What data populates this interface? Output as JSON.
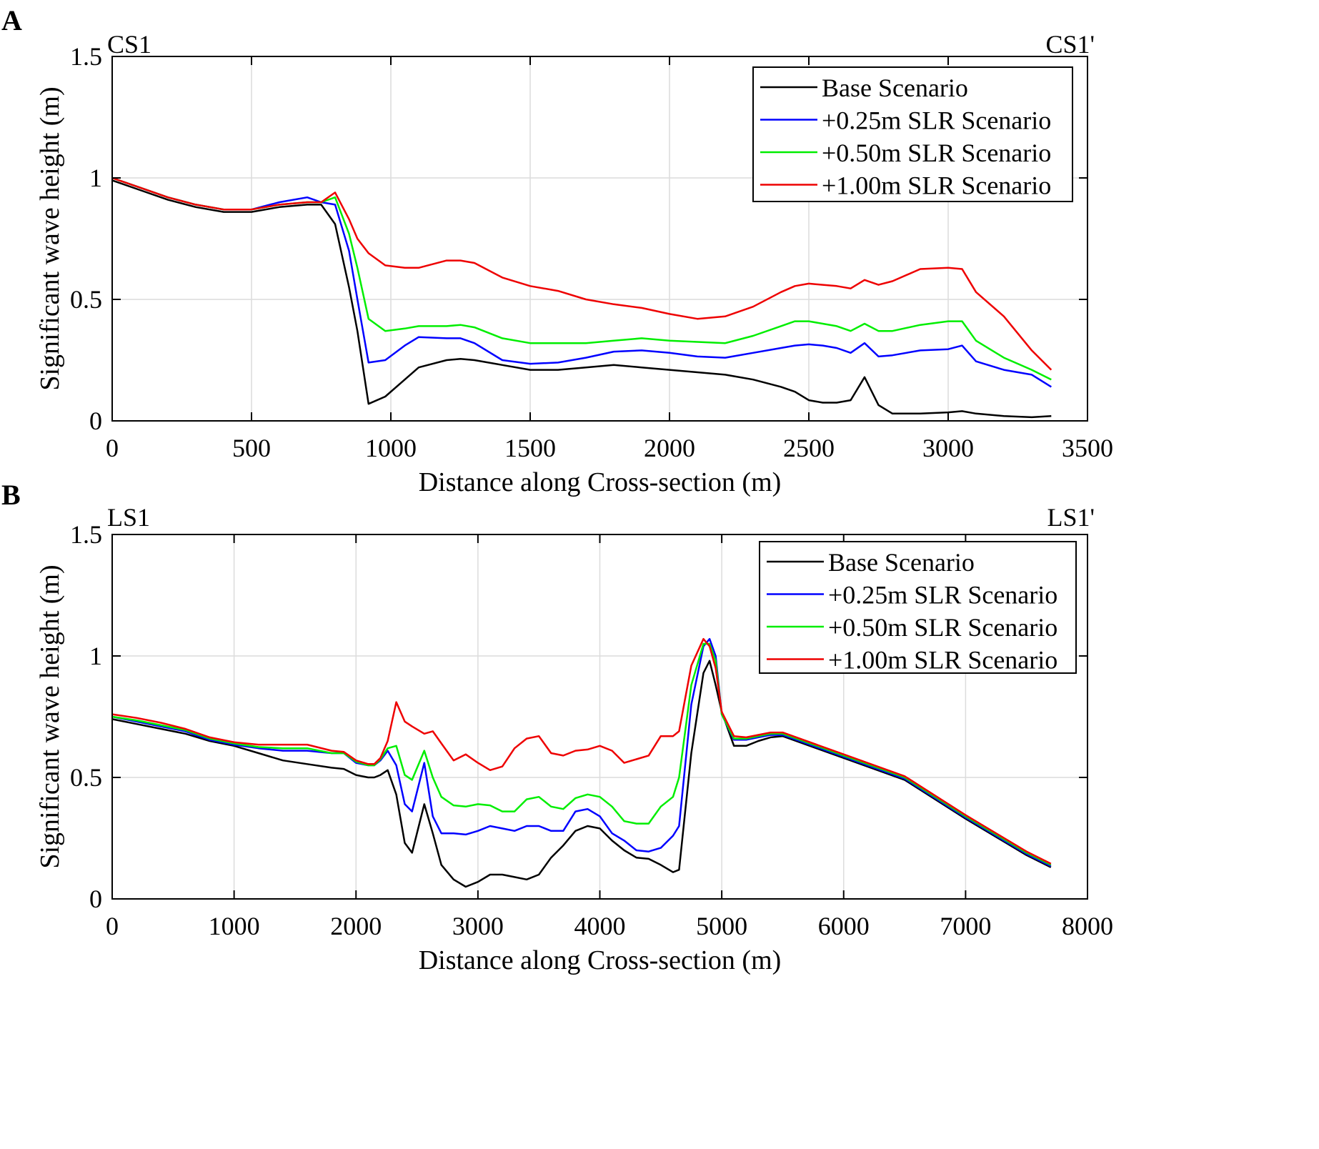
{
  "figure": {
    "panels": [
      {
        "letter": "A",
        "left_label": "CS1",
        "right_label": "CS1'"
      },
      {
        "letter": "B",
        "left_label": "LS1",
        "right_label": "LS1'"
      }
    ]
  },
  "chart_data": [
    {
      "type": "line",
      "panel": "A",
      "xlabel": "Distance along Cross-section (m)",
      "ylabel": "Significant wave height (m)",
      "xlim": [
        0,
        3500
      ],
      "ylim": [
        0,
        1.5
      ],
      "xticks": [
        0,
        500,
        1000,
        1500,
        2000,
        2500,
        3000,
        3500
      ],
      "yticks": [
        0,
        0.5,
        1,
        1.5
      ],
      "ytick_labels": [
        "0",
        "0.5",
        "1",
        "1.5"
      ],
      "grid": true,
      "legend_position": "top-right",
      "series": [
        {
          "name": "Base Scenario",
          "color": "#000000",
          "x": [
            0,
            100,
            200,
            300,
            400,
            500,
            600,
            700,
            750,
            800,
            850,
            880,
            920,
            980,
            1050,
            1100,
            1200,
            1250,
            1300,
            1400,
            1500,
            1600,
            1700,
            1800,
            1900,
            2000,
            2100,
            2200,
            2300,
            2400,
            2450,
            2500,
            2550,
            2600,
            2650,
            2700,
            2750,
            2800,
            2900,
            3000,
            3050,
            3100,
            3200,
            3300,
            3370
          ],
          "y": [
            0.99,
            0.95,
            0.91,
            0.88,
            0.86,
            0.86,
            0.88,
            0.89,
            0.89,
            0.81,
            0.55,
            0.37,
            0.07,
            0.1,
            0.17,
            0.22,
            0.25,
            0.255,
            0.25,
            0.23,
            0.21,
            0.21,
            0.22,
            0.23,
            0.22,
            0.21,
            0.2,
            0.19,
            0.17,
            0.14,
            0.12,
            0.085,
            0.075,
            0.075,
            0.085,
            0.18,
            0.065,
            0.03,
            0.03,
            0.035,
            0.04,
            0.03,
            0.02,
            0.015,
            0.02
          ]
        },
        {
          "name": "+0.25m SLR Scenario",
          "color": "#0000ff",
          "x": [
            0,
            100,
            200,
            300,
            400,
            500,
            600,
            700,
            750,
            800,
            850,
            880,
            920,
            980,
            1050,
            1100,
            1200,
            1250,
            1300,
            1400,
            1500,
            1600,
            1700,
            1800,
            1900,
            2000,
            2100,
            2200,
            2300,
            2400,
            2450,
            2500,
            2550,
            2600,
            2650,
            2700,
            2750,
            2800,
            2900,
            3000,
            3050,
            3100,
            3200,
            3300,
            3370
          ],
          "y": [
            1.0,
            0.96,
            0.92,
            0.89,
            0.87,
            0.87,
            0.9,
            0.92,
            0.9,
            0.89,
            0.7,
            0.5,
            0.24,
            0.25,
            0.31,
            0.345,
            0.34,
            0.34,
            0.32,
            0.25,
            0.235,
            0.24,
            0.26,
            0.285,
            0.29,
            0.28,
            0.265,
            0.26,
            0.28,
            0.3,
            0.31,
            0.315,
            0.31,
            0.3,
            0.28,
            0.32,
            0.265,
            0.27,
            0.29,
            0.295,
            0.31,
            0.245,
            0.21,
            0.19,
            0.14
          ]
        },
        {
          "name": "+0.50m SLR Scenario",
          "color": "#00ee00",
          "x": [
            0,
            100,
            200,
            300,
            400,
            500,
            600,
            700,
            750,
            800,
            850,
            880,
            920,
            980,
            1050,
            1100,
            1200,
            1250,
            1300,
            1400,
            1500,
            1600,
            1700,
            1800,
            1900,
            2000,
            2100,
            2200,
            2300,
            2400,
            2450,
            2500,
            2550,
            2600,
            2650,
            2700,
            2750,
            2800,
            2900,
            3000,
            3050,
            3100,
            3200,
            3300,
            3370
          ],
          "y": [
            1.0,
            0.96,
            0.92,
            0.89,
            0.87,
            0.87,
            0.89,
            0.9,
            0.9,
            0.92,
            0.77,
            0.63,
            0.42,
            0.37,
            0.38,
            0.39,
            0.39,
            0.395,
            0.385,
            0.34,
            0.32,
            0.32,
            0.32,
            0.33,
            0.34,
            0.33,
            0.325,
            0.32,
            0.35,
            0.39,
            0.41,
            0.41,
            0.4,
            0.39,
            0.37,
            0.4,
            0.37,
            0.37,
            0.395,
            0.41,
            0.41,
            0.33,
            0.26,
            0.21,
            0.17
          ]
        },
        {
          "name": "+1.00m SLR Scenario",
          "color": "#ee0000",
          "x": [
            0,
            100,
            200,
            300,
            400,
            500,
            600,
            700,
            750,
            800,
            850,
            880,
            920,
            980,
            1050,
            1100,
            1200,
            1250,
            1300,
            1400,
            1500,
            1600,
            1700,
            1800,
            1900,
            2000,
            2100,
            2200,
            2300,
            2400,
            2450,
            2500,
            2550,
            2600,
            2650,
            2700,
            2750,
            2800,
            2900,
            3000,
            3050,
            3100,
            3200,
            3300,
            3370
          ],
          "y": [
            1.0,
            0.96,
            0.92,
            0.89,
            0.87,
            0.87,
            0.89,
            0.9,
            0.9,
            0.94,
            0.83,
            0.75,
            0.69,
            0.64,
            0.63,
            0.63,
            0.66,
            0.66,
            0.65,
            0.59,
            0.555,
            0.535,
            0.5,
            0.48,
            0.465,
            0.44,
            0.42,
            0.43,
            0.47,
            0.53,
            0.555,
            0.565,
            0.56,
            0.555,
            0.545,
            0.58,
            0.56,
            0.575,
            0.625,
            0.63,
            0.625,
            0.53,
            0.43,
            0.29,
            0.21
          ]
        }
      ]
    },
    {
      "type": "line",
      "panel": "B",
      "xlabel": "Distance along Cross-section (m)",
      "ylabel": "Significant wave height (m)",
      "xlim": [
        0,
        8000
      ],
      "ylim": [
        0,
        1.5
      ],
      "xticks": [
        0,
        1000,
        2000,
        3000,
        4000,
        5000,
        6000,
        7000,
        8000
      ],
      "yticks": [
        0,
        0.5,
        1,
        1.5
      ],
      "ytick_labels": [
        "0",
        "0.5",
        "1",
        "1.5"
      ],
      "grid": true,
      "legend_position": "top-right",
      "series": [
        {
          "name": "Base Scenario",
          "color": "#000000",
          "x": [
            0,
            200,
            400,
            600,
            800,
            1000,
            1200,
            1400,
            1600,
            1800,
            1900,
            2000,
            2100,
            2150,
            2200,
            2260,
            2330,
            2400,
            2460,
            2560,
            2630,
            2700,
            2800,
            2900,
            3000,
            3100,
            3200,
            3300,
            3400,
            3500,
            3600,
            3700,
            3800,
            3900,
            4000,
            4100,
            4200,
            4300,
            4400,
            4500,
            4600,
            4650,
            4750,
            4850,
            4900,
            4950,
            5000,
            5100,
            5200,
            5300,
            5400,
            5500,
            6000,
            6500,
            7000,
            7500,
            7700
          ],
          "y": [
            0.74,
            0.72,
            0.7,
            0.68,
            0.65,
            0.63,
            0.6,
            0.57,
            0.555,
            0.54,
            0.535,
            0.51,
            0.5,
            0.5,
            0.51,
            0.53,
            0.43,
            0.23,
            0.19,
            0.39,
            0.27,
            0.14,
            0.08,
            0.05,
            0.07,
            0.1,
            0.1,
            0.09,
            0.08,
            0.1,
            0.17,
            0.22,
            0.28,
            0.3,
            0.29,
            0.24,
            0.2,
            0.17,
            0.165,
            0.14,
            0.11,
            0.12,
            0.6,
            0.93,
            0.98,
            0.88,
            0.77,
            0.63,
            0.63,
            0.65,
            0.665,
            0.67,
            0.58,
            0.49,
            0.33,
            0.18,
            0.13
          ]
        },
        {
          "name": "+0.25m SLR Scenario",
          "color": "#0000ff",
          "x": [
            0,
            200,
            400,
            600,
            800,
            1000,
            1200,
            1400,
            1600,
            1800,
            1900,
            2000,
            2100,
            2150,
            2200,
            2260,
            2330,
            2400,
            2460,
            2560,
            2630,
            2700,
            2800,
            2900,
            3000,
            3100,
            3200,
            3300,
            3400,
            3500,
            3600,
            3700,
            3800,
            3900,
            4000,
            4100,
            4200,
            4300,
            4400,
            4500,
            4600,
            4650,
            4750,
            4850,
            4900,
            4950,
            5000,
            5100,
            5200,
            5300,
            5400,
            5500,
            6000,
            6500,
            7000,
            7500,
            7700
          ],
          "y": [
            0.75,
            0.73,
            0.71,
            0.69,
            0.655,
            0.635,
            0.62,
            0.61,
            0.61,
            0.6,
            0.6,
            0.56,
            0.55,
            0.55,
            0.57,
            0.61,
            0.55,
            0.39,
            0.36,
            0.56,
            0.34,
            0.27,
            0.27,
            0.265,
            0.28,
            0.3,
            0.29,
            0.28,
            0.3,
            0.3,
            0.28,
            0.28,
            0.36,
            0.37,
            0.34,
            0.27,
            0.24,
            0.2,
            0.195,
            0.21,
            0.26,
            0.3,
            0.8,
            1.04,
            1.07,
            1.0,
            0.76,
            0.655,
            0.655,
            0.665,
            0.675,
            0.675,
            0.585,
            0.495,
            0.335,
            0.185,
            0.135
          ]
        },
        {
          "name": "+0.50m SLR Scenario",
          "color": "#00ee00",
          "x": [
            0,
            200,
            400,
            600,
            800,
            1000,
            1200,
            1400,
            1600,
            1800,
            1900,
            2000,
            2100,
            2150,
            2200,
            2260,
            2330,
            2400,
            2460,
            2560,
            2630,
            2700,
            2800,
            2900,
            3000,
            3100,
            3200,
            3300,
            3400,
            3500,
            3600,
            3700,
            3800,
            3900,
            4000,
            4100,
            4200,
            4300,
            4400,
            4500,
            4600,
            4650,
            4750,
            4850,
            4900,
            4950,
            5000,
            5100,
            5200,
            5300,
            5400,
            5500,
            6000,
            6500,
            7000,
            7500,
            7700
          ],
          "y": [
            0.75,
            0.735,
            0.715,
            0.695,
            0.66,
            0.64,
            0.625,
            0.62,
            0.62,
            0.6,
            0.6,
            0.565,
            0.55,
            0.55,
            0.575,
            0.62,
            0.63,
            0.51,
            0.49,
            0.61,
            0.5,
            0.42,
            0.385,
            0.38,
            0.39,
            0.385,
            0.36,
            0.36,
            0.41,
            0.42,
            0.38,
            0.37,
            0.415,
            0.43,
            0.42,
            0.38,
            0.32,
            0.31,
            0.31,
            0.38,
            0.42,
            0.5,
            0.88,
            1.05,
            1.05,
            0.98,
            0.76,
            0.66,
            0.66,
            0.67,
            0.68,
            0.68,
            0.59,
            0.5,
            0.34,
            0.19,
            0.14
          ]
        },
        {
          "name": "+1.00m SLR Scenario",
          "color": "#ee0000",
          "x": [
            0,
            200,
            400,
            600,
            800,
            1000,
            1200,
            1400,
            1600,
            1800,
            1900,
            2000,
            2100,
            2150,
            2200,
            2260,
            2330,
            2400,
            2460,
            2560,
            2630,
            2700,
            2800,
            2900,
            3000,
            3100,
            3200,
            3300,
            3400,
            3500,
            3600,
            3700,
            3800,
            3900,
            4000,
            4100,
            4200,
            4300,
            4400,
            4500,
            4600,
            4650,
            4750,
            4850,
            4900,
            4950,
            5000,
            5100,
            5200,
            5300,
            5400,
            5500,
            6000,
            6500,
            7000,
            7500,
            7700
          ],
          "y": [
            0.76,
            0.745,
            0.725,
            0.7,
            0.665,
            0.645,
            0.635,
            0.635,
            0.635,
            0.61,
            0.605,
            0.57,
            0.555,
            0.555,
            0.58,
            0.65,
            0.81,
            0.73,
            0.71,
            0.68,
            0.69,
            0.64,
            0.57,
            0.595,
            0.56,
            0.53,
            0.545,
            0.62,
            0.66,
            0.67,
            0.6,
            0.59,
            0.61,
            0.615,
            0.63,
            0.61,
            0.56,
            0.575,
            0.59,
            0.67,
            0.67,
            0.69,
            0.96,
            1.07,
            1.04,
            0.95,
            0.77,
            0.67,
            0.665,
            0.675,
            0.685,
            0.685,
            0.595,
            0.505,
            0.345,
            0.195,
            0.145
          ]
        }
      ]
    }
  ]
}
